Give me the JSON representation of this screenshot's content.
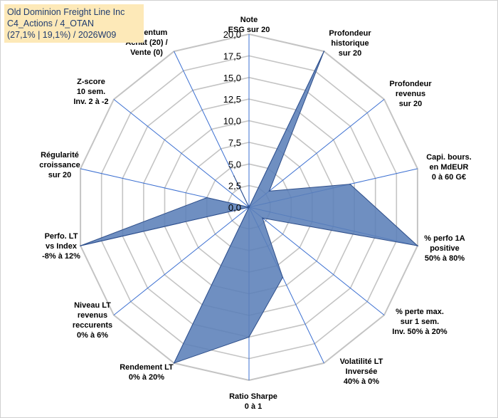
{
  "header": {
    "line1": "Old Dominion Freight Line Inc",
    "line2": "C4_Actions / 4_OTAN",
    "line3": "(27,1% | 19,1%) / 2026W09"
  },
  "chart_data": {
    "type": "radar",
    "title": "Old Dominion Freight Line Inc",
    "range": [
      0,
      20
    ],
    "ticks": [
      "0,0",
      "2,5",
      "5,0",
      "7,5",
      "10,0",
      "12,5",
      "15,0",
      "17,5",
      "20,0"
    ],
    "tick_values": [
      0,
      2.5,
      5,
      7.5,
      10,
      12.5,
      15,
      17.5,
      20
    ],
    "axes": [
      {
        "label": [
          "Note",
          "ESG sur 20"
        ],
        "value": 0
      },
      {
        "label": [
          "Profondeur",
          "historique",
          "sur 20"
        ],
        "value": 20
      },
      {
        "label": [
          "Profondeur",
          "revenus",
          "sur 20"
        ],
        "value": 3
      },
      {
        "label": [
          "Capi. bours.",
          "en MdEUR",
          "0 à 60 G€"
        ],
        "value": 12
      },
      {
        "label": [
          "% perfo 1A",
          "positive",
          "50% à 80%"
        ],
        "value": 20
      },
      {
        "label": [
          "% perte max.",
          "sur 1 sem.",
          "Inv. 50% à 20%"
        ],
        "value": 2
      },
      {
        "label": [
          "Volatilité LT",
          "Inversée",
          "40% à 0%"
        ],
        "value": 9
      },
      {
        "label": [
          "Ratio Sharpe",
          "0 à 1"
        ],
        "value": 15
      },
      {
        "label": [
          "Rendement LT",
          "0% à 20%"
        ],
        "value": 20
      },
      {
        "label": [
          "Niveau LT",
          "revenus",
          "reccurents",
          "0% à 6%"
        ],
        "value": 0
      },
      {
        "label": [
          "Perfo. LT",
          "vs Index",
          "-8% à 12%"
        ],
        "value": 20
      },
      {
        "label": [
          "Régularité",
          "croissance",
          "sur 20"
        ],
        "value": 5
      },
      {
        "label": [
          "Z-score",
          "10 sem.",
          "Inv. 2 à -2"
        ],
        "value": 0
      },
      {
        "label": [
          "Momentum",
          "Achat (20) /",
          "Vente (0)"
        ],
        "value": 4
      }
    ],
    "colors": {
      "fill": "#5b7fb8",
      "fill_opacity": "0.88",
      "stroke": "#2f4f8a",
      "axis": "#3b6fd1",
      "grid": "#c4c4c4"
    }
  }
}
